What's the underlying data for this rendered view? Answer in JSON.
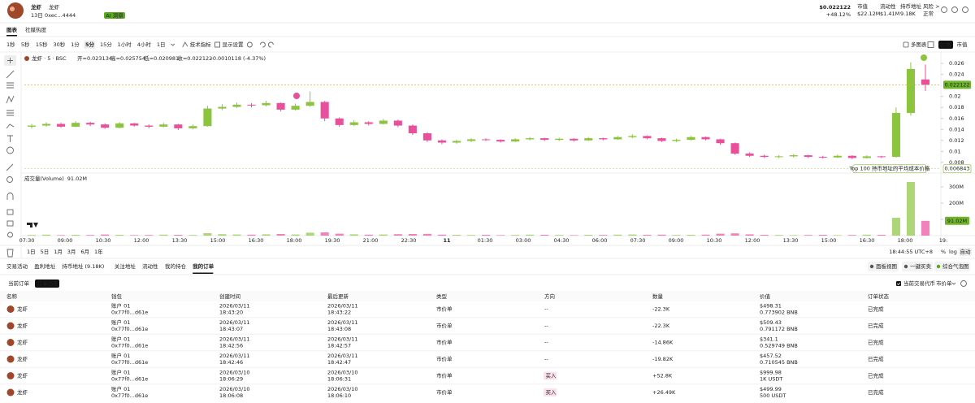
{
  "header": {
    "token_name": "龙虾",
    "token_alias": "龙虾",
    "age": "13日",
    "address": "0xec...4444",
    "ai_badge": "AI 洞察",
    "price": "$0.022122",
    "change": "+48.12%",
    "stats": [
      {
        "label": "市值",
        "value": "$22.12M"
      },
      {
        "label": "流动性",
        "value": "$1.41M"
      },
      {
        "label": "持币地址",
        "value": "9.18K"
      },
      {
        "label": "风险 >",
        "value": "正常"
      }
    ]
  },
  "view_tabs": [
    "图表",
    "社媒热度"
  ],
  "toolbar": {
    "intervals": [
      "1秒",
      "5秒",
      "15秒",
      "30秒",
      "1分",
      "5分",
      "15分",
      "1小时",
      "4小时",
      "1日"
    ],
    "active_interval": 5,
    "indicators": "技术指标",
    "display": "显示设置",
    "multi_chart": "多图表",
    "modes": [
      "价格",
      "市值"
    ]
  },
  "chart_data": {
    "type": "candlestick",
    "legend": {
      "symbol": "龙虾 · 5 · BSC",
      "items": [
        "开=0.023134",
        "高=0.025754",
        "低=0.020981",
        "收=0.022122",
        "-0.0010118 (-4.37%)"
      ]
    },
    "x_labels": [
      "07:30",
      "09:00",
      "10:30",
      "12:00",
      "13:30",
      "15:00",
      "16:30",
      "18:00",
      "19:30",
      "21:00",
      "22:30",
      "11",
      "01:30",
      "03:00",
      "04:30",
      "06:00",
      "07:30",
      "09:00",
      "10:30",
      "12:00",
      "13:30",
      "15:00",
      "16:30",
      "18:00",
      "19:"
    ],
    "open": [
      0.0145,
      0.0147,
      0.015,
      0.0145,
      0.0152,
      0.0149,
      0.0143,
      0.0151,
      0.0147,
      0.0145,
      0.0149,
      0.0142,
      0.0146,
      0.0178,
      0.0181,
      0.0185,
      0.0184,
      0.0188,
      0.0176,
      0.0183,
      0.019,
      0.016,
      0.0148,
      0.0153,
      0.015,
      0.0156,
      0.0147,
      0.0133,
      0.012,
      0.0116,
      0.0119,
      0.0122,
      0.0121,
      0.0118,
      0.0122,
      0.0124,
      0.0121,
      0.0123,
      0.012,
      0.0124,
      0.0122,
      0.0126,
      0.0128,
      0.0124,
      0.0119,
      0.0121,
      0.0126,
      0.0122,
      0.0115,
      0.0096,
      0.0092,
      0.009,
      0.0091,
      0.0093,
      0.009,
      0.0089,
      0.0092,
      0.0088,
      0.0091,
      0.009,
      0.017,
      0.0231
    ],
    "high": [
      0.015,
      0.0153,
      0.0152,
      0.0155,
      0.0154,
      0.0151,
      0.0153,
      0.0152,
      0.0149,
      0.0152,
      0.015,
      0.0149,
      0.0183,
      0.0186,
      0.0189,
      0.0188,
      0.0192,
      0.0189,
      0.0187,
      0.0209,
      0.0192,
      0.0162,
      0.0157,
      0.0155,
      0.0159,
      0.0158,
      0.0149,
      0.0135,
      0.0122,
      0.0121,
      0.0124,
      0.0124,
      0.0122,
      0.0124,
      0.0126,
      0.0125,
      0.0125,
      0.0124,
      0.0126,
      0.0125,
      0.0128,
      0.0131,
      0.0129,
      0.0125,
      0.0123,
      0.0128,
      0.0127,
      0.0123,
      0.0116,
      0.0098,
      0.0094,
      0.0093,
      0.0095,
      0.0094,
      0.0092,
      0.0094,
      0.0093,
      0.0093,
      0.0092,
      0.018,
      0.0262,
      0.0258
    ],
    "low": [
      0.0142,
      0.0145,
      0.0143,
      0.0144,
      0.0146,
      0.0141,
      0.0142,
      0.0145,
      0.0142,
      0.0144,
      0.0139,
      0.014,
      0.0145,
      0.0175,
      0.0179,
      0.018,
      0.0182,
      0.0173,
      0.0174,
      0.0181,
      0.0155,
      0.0145,
      0.0146,
      0.0147,
      0.0149,
      0.0144,
      0.013,
      0.0117,
      0.0113,
      0.0114,
      0.0117,
      0.0119,
      0.0116,
      0.0117,
      0.012,
      0.0119,
      0.0119,
      0.0118,
      0.0119,
      0.012,
      0.0121,
      0.0124,
      0.0122,
      0.0117,
      0.0117,
      0.012,
      0.012,
      0.0112,
      0.0094,
      0.009,
      0.0088,
      0.0088,
      0.0089,
      0.0088,
      0.0087,
      0.0088,
      0.0086,
      0.0087,
      0.0088,
      0.0089,
      0.0165,
      0.021
    ],
    "close": [
      0.0147,
      0.015,
      0.0145,
      0.0152,
      0.0149,
      0.0143,
      0.0151,
      0.0147,
      0.0145,
      0.0149,
      0.0142,
      0.0146,
      0.0178,
      0.0181,
      0.0185,
      0.0184,
      0.0188,
      0.0176,
      0.0183,
      0.019,
      0.016,
      0.0148,
      0.0153,
      0.015,
      0.0156,
      0.0147,
      0.0133,
      0.012,
      0.0116,
      0.0119,
      0.0122,
      0.0121,
      0.0118,
      0.0122,
      0.0124,
      0.0121,
      0.0123,
      0.012,
      0.0124,
      0.0122,
      0.0126,
      0.0128,
      0.0124,
      0.0119,
      0.0121,
      0.0126,
      0.0122,
      0.0115,
      0.0096,
      0.0092,
      0.009,
      0.0091,
      0.0093,
      0.009,
      0.0089,
      0.0092,
      0.0088,
      0.0091,
      0.009,
      0.017,
      0.025,
      0.0221
    ],
    "up_color": "#8cc43e",
    "down_color": "#e9509c",
    "ylim": [
      0.0065,
      0.0275
    ],
    "yticks": [
      0.026,
      0.024,
      0.02,
      0.018,
      0.016,
      0.014,
      0.012,
      0.01,
      0.008
    ],
    "last_price": 0.022122,
    "avg_cost_price": 0.006843,
    "avg_cost_note": "Top 100 持币地址的平均成本价格",
    "volume": {
      "title": "成交量(Volume)",
      "last_label": "91.02M",
      "values": [
        4,
        6,
        3,
        5,
        4,
        7,
        5,
        3,
        4,
        6,
        5,
        4,
        15,
        9,
        7,
        6,
        8,
        10,
        7,
        18,
        20,
        12,
        8,
        6,
        7,
        9,
        10,
        11,
        6,
        5,
        4,
        5,
        3,
        4,
        6,
        5,
        4,
        3,
        5,
        4,
        6,
        7,
        5,
        6,
        4,
        5,
        6,
        12,
        14,
        8,
        5,
        4,
        3,
        4,
        5,
        3,
        4,
        6,
        5,
        110,
        330,
        91.02
      ],
      "ylim": [
        0,
        350
      ],
      "yticks": [
        {
          "value": 300,
          "label": "300M"
        },
        {
          "value": 200,
          "label": "200M"
        },
        {
          "value": 100,
          "label": "100M"
        }
      ]
    }
  },
  "range_bar": {
    "ranges": [
      "1日",
      "5日",
      "1月",
      "3月",
      "6月",
      "1年"
    ],
    "clock": "18:44:55 UTC+8",
    "percent": "%",
    "log": "log",
    "auto": "自动"
  },
  "bottom_tabs": {
    "tabs": [
      "交易活动",
      "盈利地址",
      "持币地址 (9.18K)",
      "关注地址",
      "流动性",
      "我的持仓",
      "我的订单"
    ],
    "active": 6,
    "buttons": [
      "面板视图",
      "一键买卖",
      "综合气泡图"
    ]
  },
  "order_tabs": {
    "tabs": [
      "当前订单",
      "订单历史"
    ],
    "active": 1,
    "filter": "当前交易代币",
    "order_type": "市价单"
  },
  "table": {
    "columns": [
      "名称",
      "钱包",
      "创建时间",
      "最后更新",
      "类型",
      "方向",
      "数量",
      "价值",
      "订单状态"
    ],
    "rows": [
      {
        "name": "龙虾",
        "wallet": "账户 01",
        "wallet_addr": "0x77f0...d61e",
        "created_date": "2026/03/11",
        "created_time": "18:43:20",
        "updated_date": "2026/03/11",
        "updated_time": "18:43:22",
        "type": "市价单",
        "side": "--",
        "amount": "-22.3K",
        "value": "$498.31",
        "value_sub": "0.773902 BNB",
        "status": "已完成"
      },
      {
        "name": "龙虾",
        "wallet": "账户 01",
        "wallet_addr": "0x77f0...d61e",
        "created_date": "2026/03/11",
        "created_time": "18:43:07",
        "updated_date": "2026/03/11",
        "updated_time": "18:43:08",
        "type": "市价单",
        "side": "--",
        "amount": "-22.3K",
        "value": "$509.43",
        "value_sub": "0.791172 BNB",
        "status": "已完成"
      },
      {
        "name": "龙虾",
        "wallet": "账户 01",
        "wallet_addr": "0x77f0...d61e",
        "created_date": "2026/03/11",
        "created_time": "18:42:56",
        "updated_date": "2026/03/11",
        "updated_time": "18:42:57",
        "type": "市价单",
        "side": "--",
        "amount": "-14.86K",
        "value": "$341.1",
        "value_sub": "0.529749 BNB",
        "status": "已完成"
      },
      {
        "name": "龙虾",
        "wallet": "账户 01",
        "wallet_addr": "0x77f0...d61e",
        "created_date": "2026/03/11",
        "created_time": "18:42:46",
        "updated_date": "2026/03/11",
        "updated_time": "18:42:47",
        "type": "市价单",
        "side": "--",
        "amount": "-19.82K",
        "value": "$457.52",
        "value_sub": "0.710545 BNB",
        "status": "已完成"
      },
      {
        "name": "龙虾",
        "wallet": "账户 01",
        "wallet_addr": "0x77f0...d61e",
        "created_date": "2026/03/10",
        "created_time": "18:06:29",
        "updated_date": "2026/03/10",
        "updated_time": "18:06:31",
        "type": "市价单",
        "side": "买入",
        "amount": "+52.8K",
        "value": "$999.98",
        "value_sub": "1K USDT",
        "status": "已完成"
      },
      {
        "name": "龙虾",
        "wallet": "账户 01",
        "wallet_addr": "0x77f0...d61e",
        "created_date": "2026/03/10",
        "created_time": "18:06:08",
        "updated_date": "2026/03/10",
        "updated_time": "18:06:10",
        "type": "市价单",
        "side": "买入",
        "amount": "+26.49K",
        "value": "$499.99",
        "value_sub": "500 USDT",
        "status": "已完成"
      }
    ]
  }
}
